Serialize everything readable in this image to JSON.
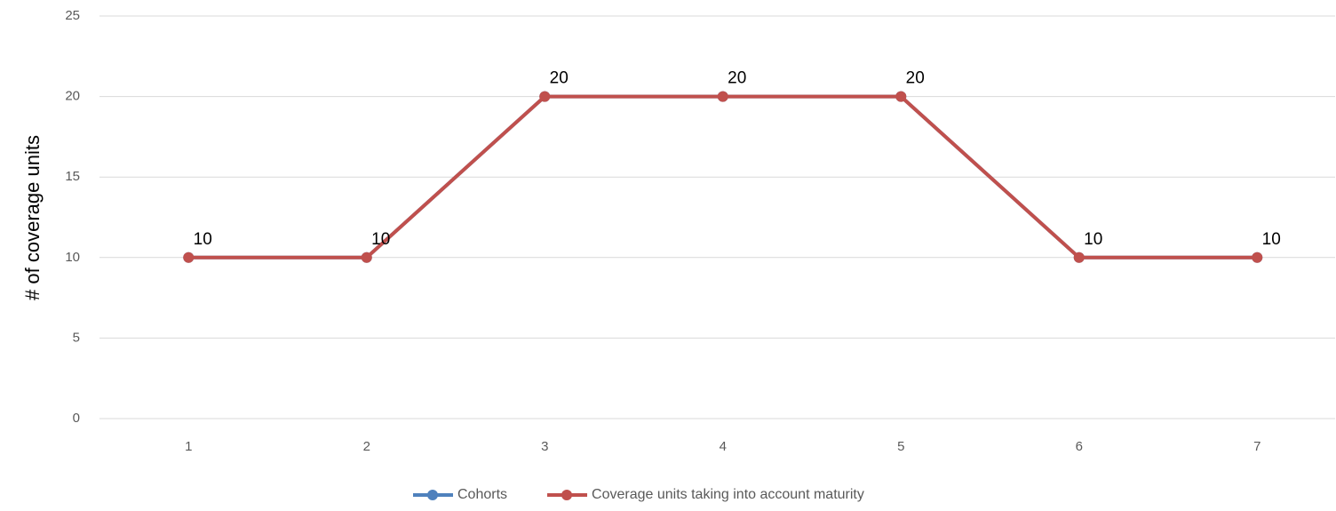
{
  "chart_data": {
    "type": "line",
    "y_axis_label": "# of coverage units",
    "categories": [
      "1",
      "2",
      "3",
      "4",
      "5",
      "6",
      "7"
    ],
    "series": [
      {
        "name": "Cohorts",
        "color": "#4f81bd",
        "values": [
          10,
          10,
          20,
          20,
          20,
          10,
          10
        ],
        "show_labels": false
      },
      {
        "name": "Coverage units taking into account maturity",
        "color": "#c0504d",
        "values": [
          10,
          10,
          20,
          20,
          20,
          10,
          10
        ],
        "show_labels": true
      }
    ],
    "ylim": [
      0,
      25
    ],
    "yticks": [
      0,
      5,
      10,
      15,
      20,
      25
    ],
    "grid": true,
    "legend": "bottom"
  }
}
